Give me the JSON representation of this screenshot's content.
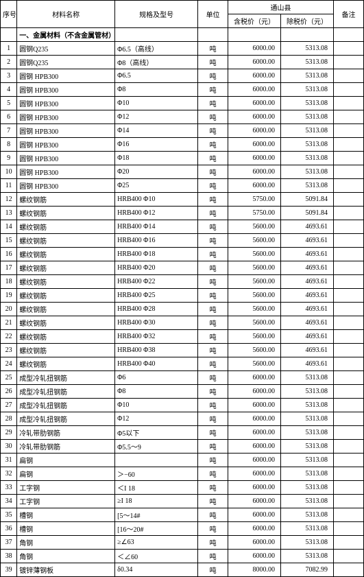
{
  "region": "通山县",
  "headers": {
    "idx": "序号",
    "name": "材料名称",
    "spec": "规格及型号",
    "unit": "单位",
    "price_tax": "含税价（元）",
    "price_notax": "除税价（元）",
    "remark": "备注"
  },
  "section_title": "一、金属材料（不含金属管材）",
  "rows": [
    {
      "idx": "1",
      "name": "圆钢Q235",
      "spec": "Φ6.5（高线）",
      "unit": "吨",
      "p1": "6000.00",
      "p2": "5313.08"
    },
    {
      "idx": "2",
      "name": "圆钢Q235",
      "spec": "Φ8（高线）",
      "unit": "吨",
      "p1": "6000.00",
      "p2": "5313.08"
    },
    {
      "idx": "3",
      "name": "圆钢 HPB300",
      "spec": "Φ6.5",
      "unit": "吨",
      "p1": "6000.00",
      "p2": "5313.08"
    },
    {
      "idx": "4",
      "name": "圆钢 HPB300",
      "spec": "Φ8",
      "unit": "吨",
      "p1": "6000.00",
      "p2": "5313.08"
    },
    {
      "idx": "5",
      "name": "圆钢 HPB300",
      "spec": "Φ10",
      "unit": "吨",
      "p1": "6000.00",
      "p2": "5313.08"
    },
    {
      "idx": "6",
      "name": "圆钢 HPB300",
      "spec": "Φ12",
      "unit": "吨",
      "p1": "6000.00",
      "p2": "5313.08"
    },
    {
      "idx": "7",
      "name": "圆钢 HPB300",
      "spec": "Φ14",
      "unit": "吨",
      "p1": "6000.00",
      "p2": "5313.08"
    },
    {
      "idx": "8",
      "name": "圆钢 HPB300",
      "spec": "Φ16",
      "unit": "吨",
      "p1": "6000.00",
      "p2": "5313.08"
    },
    {
      "idx": "9",
      "name": "圆钢 HPB300",
      "spec": "Φ18",
      "unit": "吨",
      "p1": "6000.00",
      "p2": "5313.08"
    },
    {
      "idx": "10",
      "name": "圆钢 HPB300",
      "spec": "Φ20",
      "unit": "吨",
      "p1": "6000.00",
      "p2": "5313.08"
    },
    {
      "idx": "11",
      "name": "圆钢 HPB300",
      "spec": "Φ25",
      "unit": "吨",
      "p1": "6000.00",
      "p2": "5313.08"
    },
    {
      "idx": "12",
      "name": "螺纹钢筋",
      "spec": "HRB400 Φ10",
      "unit": "吨",
      "p1": "5750.00",
      "p2": "5091.84"
    },
    {
      "idx": "13",
      "name": "螺纹钢筋",
      "spec": "HRB400 Φ12",
      "unit": "吨",
      "p1": "5750.00",
      "p2": "5091.84"
    },
    {
      "idx": "14",
      "name": "螺纹钢筋",
      "spec": "HRB400 Φ14",
      "unit": "吨",
      "p1": "5600.00",
      "p2": "4693.61"
    },
    {
      "idx": "15",
      "name": "螺纹钢筋",
      "spec": "HRB400 Φ16",
      "unit": "吨",
      "p1": "5600.00",
      "p2": "4693.61"
    },
    {
      "idx": "16",
      "name": "螺纹钢筋",
      "spec": "HRB400 Φ18",
      "unit": "吨",
      "p1": "5600.00",
      "p2": "4693.61"
    },
    {
      "idx": "17",
      "name": "螺纹钢筋",
      "spec": "HRB400 Φ20",
      "unit": "吨",
      "p1": "5600.00",
      "p2": "4693.61"
    },
    {
      "idx": "18",
      "name": "螺纹钢筋",
      "spec": "HRB400 Φ22",
      "unit": "吨",
      "p1": "5600.00",
      "p2": "4693.61"
    },
    {
      "idx": "19",
      "name": "螺纹钢筋",
      "spec": "HRB400 Φ25",
      "unit": "吨",
      "p1": "5600.00",
      "p2": "4693.61"
    },
    {
      "idx": "20",
      "name": "螺纹钢筋",
      "spec": "HRB400 Φ28",
      "unit": "吨",
      "p1": "5600.00",
      "p2": "4693.61"
    },
    {
      "idx": "21",
      "name": "螺纹钢筋",
      "spec": "HRB400 Φ30",
      "unit": "吨",
      "p1": "5600.00",
      "p2": "4693.61"
    },
    {
      "idx": "22",
      "name": "螺纹钢筋",
      "spec": "HRB400 Φ32",
      "unit": "吨",
      "p1": "5600.00",
      "p2": "4693.61"
    },
    {
      "idx": "23",
      "name": "螺纹钢筋",
      "spec": "HRB400 Φ38",
      "unit": "吨",
      "p1": "5600.00",
      "p2": "4693.61"
    },
    {
      "idx": "24",
      "name": "螺纹钢筋",
      "spec": "HRB400 Φ40",
      "unit": "吨",
      "p1": "5600.00",
      "p2": "4693.61"
    },
    {
      "idx": "25",
      "name": "成型冷轧扭钢筋",
      "spec": "Φ6",
      "unit": "吨",
      "p1": "6000.00",
      "p2": "5313.08"
    },
    {
      "idx": "26",
      "name": "成型冷轧扭钢筋",
      "spec": "Φ8",
      "unit": "吨",
      "p1": "6000.00",
      "p2": "5313.08"
    },
    {
      "idx": "27",
      "name": "成型冷轧扭钢筋",
      "spec": "Φ10",
      "unit": "吨",
      "p1": "6000.00",
      "p2": "5313.08"
    },
    {
      "idx": "28",
      "name": "成型冷轧扭钢筋",
      "spec": "Φ12",
      "unit": "吨",
      "p1": "6000.00",
      "p2": "5313.08"
    },
    {
      "idx": "29",
      "name": "冷轧带肋钢筋",
      "spec": "Φ5以下",
      "unit": "吨",
      "p1": "6000.00",
      "p2": "5313.08"
    },
    {
      "idx": "30",
      "name": "冷轧带肋钢筋",
      "spec": "Φ5.5～9",
      "unit": "吨",
      "p1": "6000.00",
      "p2": "5313.08"
    },
    {
      "idx": "31",
      "name": "扁钢",
      "spec": "",
      "unit": "吨",
      "p1": "6000.00",
      "p2": "5313.08"
    },
    {
      "idx": "32",
      "name": "扁钢",
      "spec": "＞−60",
      "unit": "吨",
      "p1": "6000.00",
      "p2": "5313.08"
    },
    {
      "idx": "33",
      "name": "工字钢",
      "spec": "＜I 18",
      "unit": "吨",
      "p1": "6000.00",
      "p2": "5313.08"
    },
    {
      "idx": "34",
      "name": "工字钢",
      "spec": "≥I 18",
      "unit": "吨",
      "p1": "6000.00",
      "p2": "5313.08"
    },
    {
      "idx": "35",
      "name": "槽钢",
      "spec": "[5～14#",
      "unit": "吨",
      "p1": "6000.00",
      "p2": "5313.08"
    },
    {
      "idx": "36",
      "name": "槽钢",
      "spec": "[16～20#",
      "unit": "吨",
      "p1": "6000.00",
      "p2": "5313.08"
    },
    {
      "idx": "37",
      "name": "角钢",
      "spec": "≥∠63",
      "unit": "吨",
      "p1": "6000.00",
      "p2": "5313.08"
    },
    {
      "idx": "38",
      "name": "角钢",
      "spec": "＜∠60",
      "unit": "吨",
      "p1": "6000.00",
      "p2": "5313.08"
    },
    {
      "idx": "39",
      "name": "镀锌薄钢板",
      "spec": "δ0.34",
      "unit": "吨",
      "p1": "8000.00",
      "p2": "7082.99"
    }
  ]
}
